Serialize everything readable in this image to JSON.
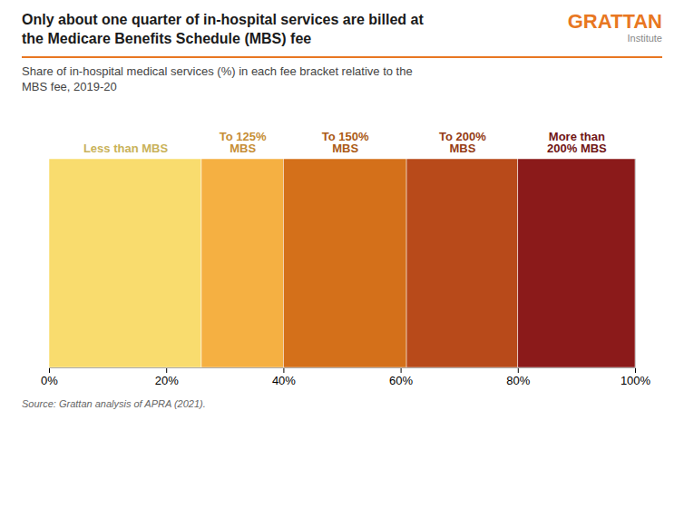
{
  "chart_data": {
    "type": "bar",
    "orientation": "horizontal",
    "stacked": true,
    "title": "Only about one quarter of in-hospital services are billed at\nthe Medicare Benefits Schedule (MBS) fee",
    "subtitle": "Share of in-hospital medical services (%) in each fee bracket relative to the\nMBS fee, 2019-20",
    "caption": "Source: Grattan analysis of APRA (2021).",
    "annotations": [
      "GRATTAN",
      "Institute"
    ],
    "categories": [
      null
    ],
    "series": [
      {
        "name": "Less than MBS",
        "color": "#F9DC6E",
        "values": [
          26
        ]
      },
      {
        "name": "To 125%\nMBS",
        "color": "#F5B042",
        "values": [
          14
        ]
      },
      {
        "name": "To 150%\nMBS",
        "color": "#D4701A",
        "values": [
          21
        ]
      },
      {
        "name": "To 200%\nMBS",
        "color": "#B84A1A",
        "values": [
          19
        ]
      },
      {
        "name": "More than\n200% MBS",
        "color": "#8B1A1A",
        "values": [
          20
        ]
      }
    ],
    "xlim": [
      0,
      100
    ],
    "xticks": [
      {
        "value": 0,
        "label": "0%"
      },
      {
        "value": 20,
        "label": "20%"
      },
      {
        "value": 40,
        "label": "40%"
      },
      {
        "value": 60,
        "label": "60%"
      },
      {
        "value": 80,
        "label": "80%"
      },
      {
        "value": 100,
        "label": "100%"
      }
    ],
    "grid": true,
    "tick_labels": "x"
  }
}
